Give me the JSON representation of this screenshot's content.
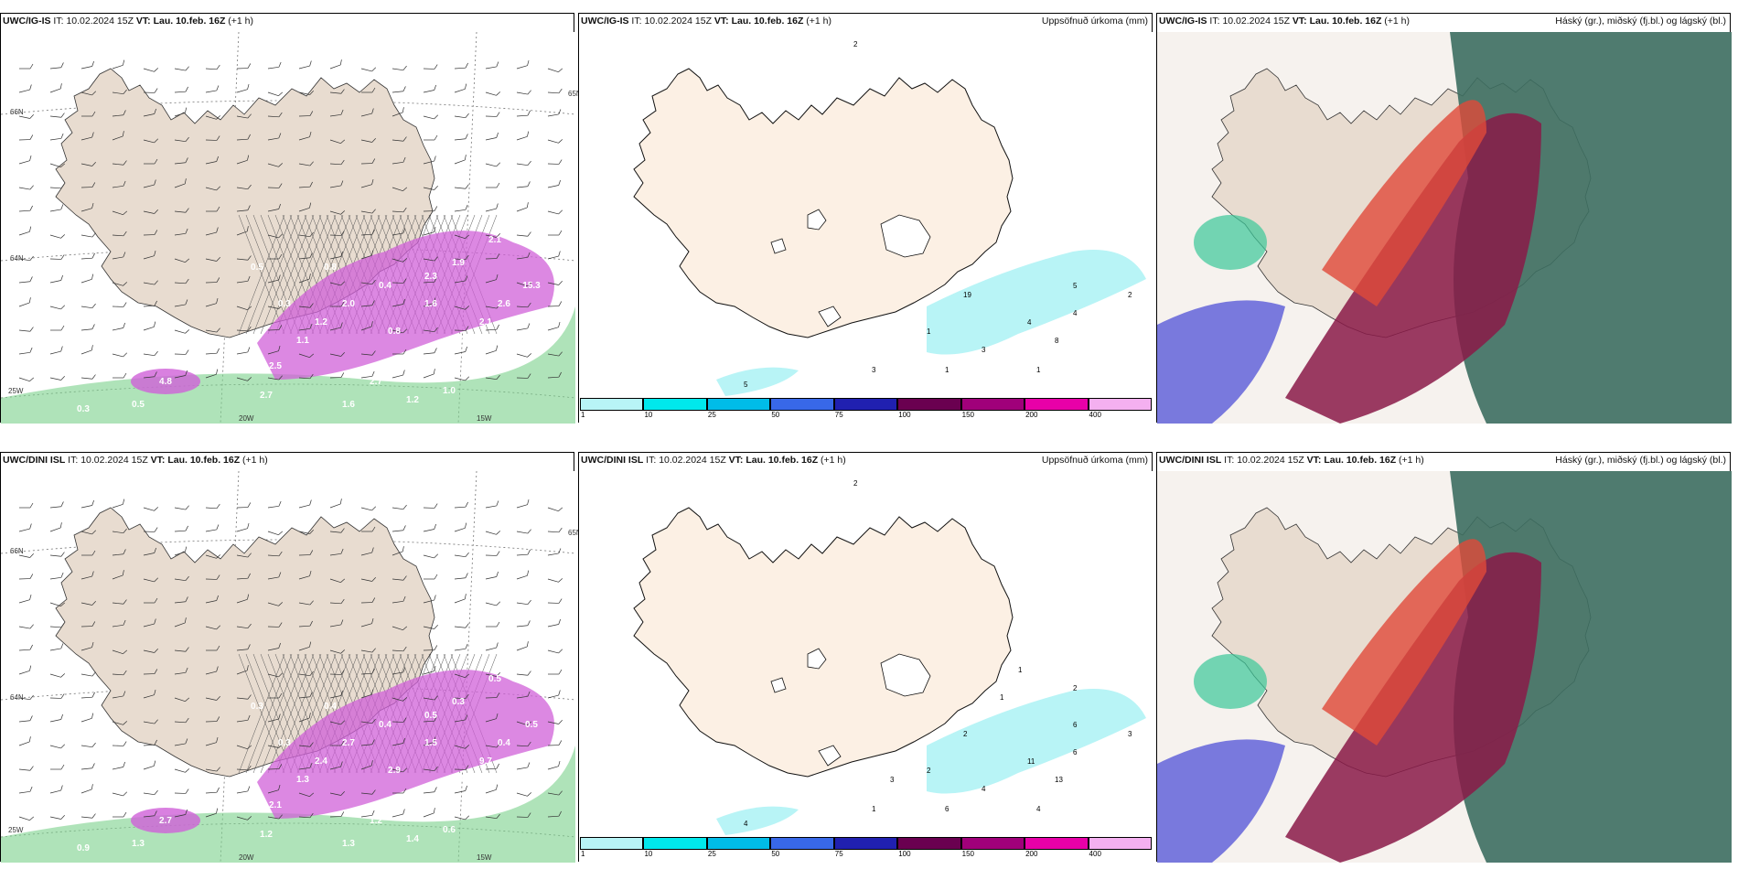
{
  "panels": [
    {
      "id": "p1",
      "model": "UWC/IG-IS",
      "it_label": "IT:",
      "it": "10.02.2024 15Z",
      "vt_label": "VT:",
      "vt": "Lau. 10.feb. 16Z",
      "lead": "(+1 h)",
      "right_title": "",
      "type": "wind"
    },
    {
      "id": "p2",
      "model": "UWC/IG-IS",
      "it_label": "IT:",
      "it": "10.02.2024 15Z",
      "vt_label": "VT:",
      "vt": "Lau. 10.feb. 16Z",
      "lead": "(+1 h)",
      "right_title": "Uppsöfnuð úrkoma (mm)",
      "type": "precip"
    },
    {
      "id": "p3",
      "model": "UWC/IG-IS",
      "it_label": "IT:",
      "it": "10.02.2024 15Z",
      "vt_label": "VT:",
      "vt": "Lau. 10.feb. 16Z",
      "lead": "(+1 h)",
      "right_title": "Háský (gr.), miðský (fj.bl.) og lágský (bl.)",
      "type": "cloud"
    },
    {
      "id": "p4",
      "model": "UWC/DINI ISL",
      "it_label": "IT:",
      "it": "10.02.2024 15Z",
      "vt_label": "VT:",
      "vt": "Lau. 10.feb. 16Z",
      "lead": "(+1 h)",
      "right_title": "",
      "type": "wind"
    },
    {
      "id": "p5",
      "model": "UWC/DINI ISL",
      "it_label": "IT:",
      "it": "10.02.2024 15Z",
      "vt_label": "VT:",
      "vt": "Lau. 10.feb. 16Z",
      "lead": "(+1 h)",
      "right_title": "Uppsöfnuð úrkoma (mm)",
      "type": "precip"
    },
    {
      "id": "p6",
      "model": "UWC/DINI ISL",
      "it_label": "IT:",
      "it": "10.02.2024 15Z",
      "vt_label": "VT:",
      "vt": "Lau. 10.feb. 16Z",
      "lead": "(+1 h)",
      "right_title": "Háský (gr.), miðský (fj.bl.) og lágský (bl.)",
      "type": "cloud"
    }
  ],
  "grid_labels": {
    "lat_66": "66N",
    "lat_64": "64N",
    "lat_65": "65N",
    "lon_20": "20W",
    "lon_15": "15W",
    "lon_25": "25W"
  },
  "legend": {
    "colors": [
      "#b8f4f6",
      "#00e8ec",
      "#00bce8",
      "#3868e8",
      "#2020b0",
      "#6a0050",
      "#a0007a",
      "#e800a8",
      "#f4b0f0"
    ],
    "labels": [
      "1",
      "10",
      "25",
      "50",
      "75",
      "100",
      "150",
      "200",
      "400"
    ]
  },
  "precip_values": {
    "p1": [
      [
        "5"
      ],
      [
        "2"
      ],
      [
        "3"
      ],
      [
        "8"
      ],
      [
        "4"
      ],
      [
        "2"
      ],
      [
        "1"
      ],
      [
        "19"
      ],
      [
        "5"
      ],
      [
        "4"
      ],
      [
        "3"
      ],
      [
        "1"
      ],
      [
        "1"
      ]
    ],
    "p2": [
      [
        "4"
      ],
      [
        "2"
      ],
      [
        "1"
      ],
      [
        "13"
      ],
      [
        "11"
      ],
      [
        "3"
      ],
      [
        "2"
      ],
      [
        "2"
      ],
      [
        "6"
      ],
      [
        "6"
      ],
      [
        "4"
      ],
      [
        "4"
      ],
      [
        "6"
      ],
      [
        "3"
      ],
      [
        "2"
      ],
      [
        "1"
      ],
      [
        "1"
      ]
    ]
  },
  "wind_values": {
    "p1": [
      "4.8",
      "2.5",
      "1.1",
      "1.2",
      "2.0",
      "0.3",
      "2.7",
      "1.6",
      "3.1",
      "2.7",
      "2.1",
      "4.7",
      "2.1",
      "2.6",
      "15.3",
      "1.9",
      "2.3",
      "0.4",
      "0.8",
      "0.5",
      "1.2",
      "1.0",
      "0.3",
      "2.1",
      "0.5",
      "0.8",
      "1.6"
    ],
    "p4": [
      "2.7",
      "2.1",
      "1.3",
      "2.4",
      "2.7",
      "0.3",
      "1.2",
      "1.3",
      "0.7",
      "1.2",
      "4.3",
      "5.7",
      "9.7",
      "0.4",
      "0.5",
      "0.3",
      "0.5",
      "0.4",
      "2.9",
      "1.3",
      "1.4",
      "0.6",
      "0.9",
      "0.5",
      "0.3",
      "0.4",
      "1.5"
    ]
  },
  "colors": {
    "land": "#e8dcd0",
    "land_precip": "#fcf0e4",
    "magenta": "#d060d8",
    "green": "#7ad08a",
    "cloud_red": "#e04a3a",
    "cloud_dark": "#3d6e60",
    "cloud_maroon": "#8a1a48",
    "cloud_blue": "#5a5ad8"
  }
}
